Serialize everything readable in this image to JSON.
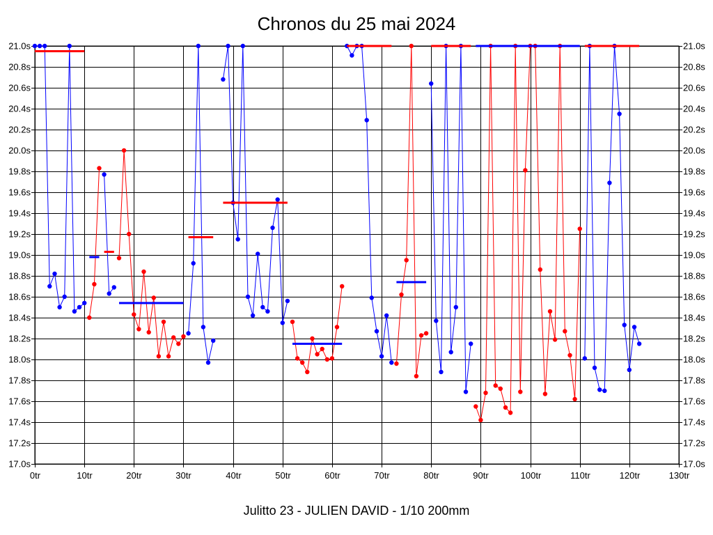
{
  "chart_data": {
    "type": "line",
    "title": "Chronos du 25 mai 2024",
    "subtitle": "Julitto 23 - JULIEN DAVID - 1/10 200mm",
    "xlim": [
      0,
      130
    ],
    "ylim": [
      17.0,
      21.0
    ],
    "x_ticks": [
      0,
      10,
      20,
      30,
      40,
      50,
      60,
      70,
      80,
      90,
      100,
      110,
      120,
      130
    ],
    "x_tick_labels": [
      "0tr",
      "10tr",
      "20tr",
      "30tr",
      "40tr",
      "50tr",
      "60tr",
      "70tr",
      "80tr",
      "90tr",
      "100tr",
      "110tr",
      "120tr",
      "130tr"
    ],
    "y_ticks": [
      17.0,
      17.2,
      17.4,
      17.6,
      17.8,
      18.0,
      18.2,
      18.4,
      18.6,
      18.8,
      19.0,
      19.2,
      19.4,
      19.6,
      19.8,
      20.0,
      20.2,
      20.4,
      20.6,
      20.8,
      21.0
    ],
    "y_tick_labels": [
      "17.0s",
      "17.2s",
      "17.4s",
      "17.6s",
      "17.8s",
      "18.0s",
      "18.2s",
      "18.4s",
      "18.6s",
      "18.8s",
      "19.0s",
      "19.2s",
      "19.4s",
      "19.6s",
      "19.8s",
      "20.0s",
      "20.2s",
      "20.4s",
      "20.6s",
      "20.8s",
      "21.0s"
    ],
    "grid": true,
    "colors": {
      "blue": "#0000ff",
      "red": "#ff0000"
    },
    "series": [
      {
        "name": "segment-1",
        "color": "blue",
        "x": [
          0,
          1,
          2,
          3,
          4,
          5,
          6,
          7,
          8,
          9,
          10
        ],
        "y": [
          21.0,
          21.0,
          21.0,
          18.7,
          18.82,
          18.5,
          18.6,
          21.0,
          18.46,
          18.5,
          18.54
        ]
      },
      {
        "name": "segment-2",
        "color": "red",
        "x": [
          11,
          12,
          13
        ],
        "y": [
          18.4,
          18.72,
          19.83
        ]
      },
      {
        "name": "segment-3",
        "color": "blue",
        "x": [
          14,
          15,
          16
        ],
        "y": [
          19.77,
          18.63,
          18.69
        ]
      },
      {
        "name": "segment-4",
        "color": "red",
        "x": [
          17,
          18,
          19,
          20,
          21,
          22,
          23,
          24,
          25,
          26,
          27,
          28,
          29,
          30
        ],
        "y": [
          18.97,
          20.0,
          19.2,
          18.43,
          18.29,
          18.84,
          18.26,
          18.59,
          18.03,
          18.36,
          18.03,
          18.21,
          18.15,
          18.22
        ]
      },
      {
        "name": "segment-5",
        "color": "blue",
        "x": [
          31,
          32,
          33,
          34,
          35,
          36
        ],
        "y": [
          18.25,
          18.92,
          21.0,
          18.31,
          17.97,
          18.18
        ]
      },
      {
        "name": "segment-6",
        "color": "blue",
        "x": [
          38,
          39,
          40,
          41,
          42,
          43,
          44,
          45,
          46,
          47,
          48,
          49,
          50,
          51
        ],
        "y": [
          20.68,
          21.0,
          19.5,
          19.15,
          21.0,
          18.6,
          18.42,
          19.01,
          18.5,
          18.46,
          19.26,
          19.53,
          18.35,
          18.56
        ]
      },
      {
        "name": "segment-7",
        "color": "red",
        "x": [
          52,
          53,
          54,
          55,
          56,
          57,
          58,
          59,
          60,
          61,
          62
        ],
        "y": [
          18.36,
          18.01,
          17.97,
          17.88,
          18.2,
          18.05,
          18.1,
          18.0,
          18.01,
          18.31,
          18.7
        ]
      },
      {
        "name": "segment-8",
        "color": "blue",
        "x": [
          63,
          64,
          65,
          66,
          67,
          68,
          69,
          70,
          71,
          72
        ],
        "y": [
          21.0,
          20.91,
          21.0,
          21.0,
          20.29,
          18.59,
          18.27,
          18.03,
          18.42,
          17.97
        ]
      },
      {
        "name": "segment-9",
        "color": "red",
        "x": [
          73,
          74,
          75,
          76,
          77,
          78,
          79
        ],
        "y": [
          17.96,
          18.62,
          18.95,
          21.0,
          17.84,
          18.23,
          18.25
        ]
      },
      {
        "name": "segment-10",
        "color": "blue",
        "x": [
          80,
          81,
          82,
          83,
          84,
          85,
          86,
          87,
          88
        ],
        "y": [
          20.64,
          18.37,
          17.88,
          21.0,
          18.07,
          18.5,
          21.0,
          17.69,
          18.15
        ]
      },
      {
        "name": "segment-11",
        "color": "red",
        "x": [
          89,
          90,
          91,
          92,
          93,
          94,
          95,
          96,
          97,
          98,
          99,
          100,
          101,
          102,
          103,
          104,
          105,
          106,
          107,
          108,
          109,
          110
        ],
        "y": [
          17.55,
          17.42,
          17.68,
          21.0,
          17.75,
          17.72,
          17.54,
          17.49,
          21.0,
          17.69,
          19.81,
          21.0,
          21.0,
          18.86,
          17.67,
          18.46,
          18.19,
          21.0,
          18.27,
          18.04,
          17.62,
          19.25
        ]
      },
      {
        "name": "segment-12",
        "color": "blue",
        "x": [
          111,
          112,
          113,
          114,
          115,
          116,
          117,
          118,
          119,
          120,
          121,
          122
        ],
        "y": [
          18.01,
          21.0,
          17.92,
          17.71,
          17.7,
          19.69,
          21.0,
          20.35,
          18.33,
          17.9,
          18.31,
          18.15
        ]
      }
    ],
    "average_lines": [
      {
        "color": "red",
        "x_start": 0,
        "x_end": 10,
        "y": 20.95
      },
      {
        "color": "blue",
        "x_start": 11,
        "x_end": 13,
        "y": 18.98
      },
      {
        "color": "red",
        "x_start": 14,
        "x_end": 16,
        "y": 19.03
      },
      {
        "color": "blue",
        "x_start": 17,
        "x_end": 30,
        "y": 18.54
      },
      {
        "color": "red",
        "x_start": 31,
        "x_end": 36,
        "y": 19.17
      },
      {
        "color": "red",
        "x_start": 38,
        "x_end": 51,
        "y": 19.5
      },
      {
        "color": "blue",
        "x_start": 52,
        "x_end": 62,
        "y": 18.15
      },
      {
        "color": "red",
        "x_start": 63,
        "x_end": 72,
        "y": 21.0
      },
      {
        "color": "blue",
        "x_start": 73,
        "x_end": 79,
        "y": 18.74
      },
      {
        "color": "red",
        "x_start": 80,
        "x_end": 88,
        "y": 21.0
      },
      {
        "color": "blue",
        "x_start": 89,
        "x_end": 110,
        "y": 21.0
      },
      {
        "color": "red",
        "x_start": 111,
        "x_end": 122,
        "y": 21.0
      }
    ]
  }
}
